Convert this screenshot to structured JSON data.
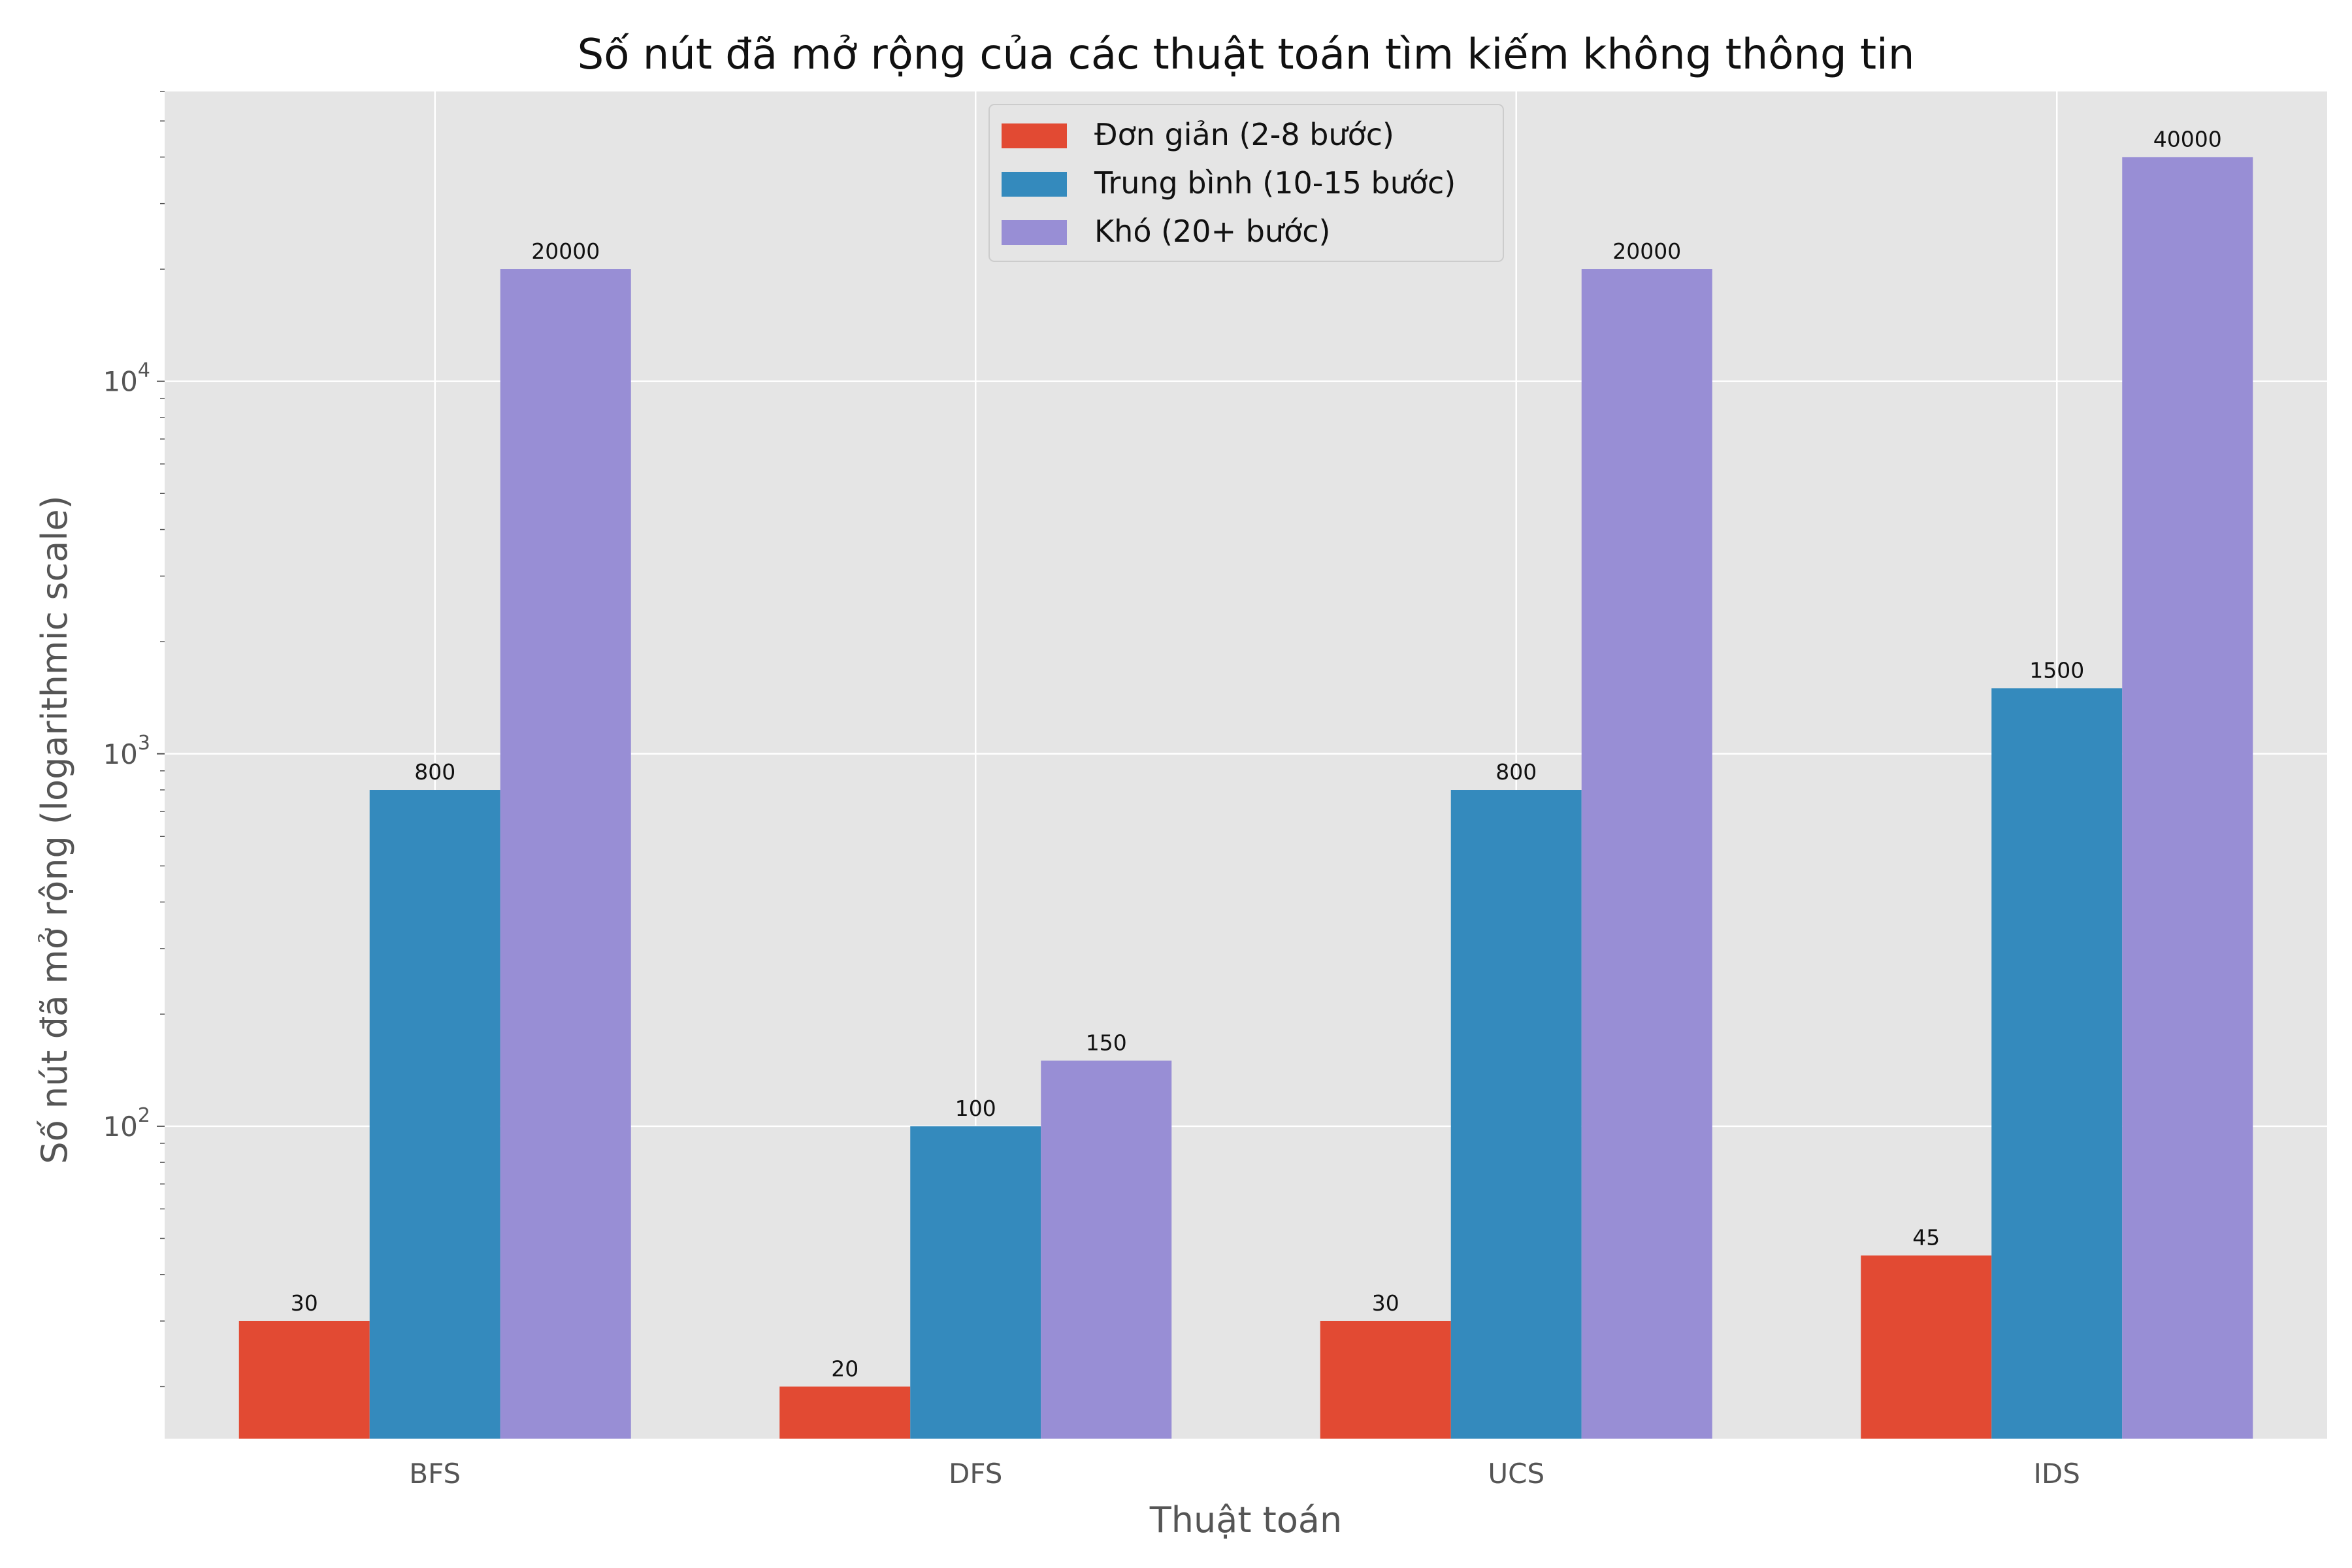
{
  "chart_data": {
    "type": "bar",
    "title": "Số nút đã mở rộng của các thuật toán tìm kiếm không thông tin",
    "xlabel": "Thuật toán",
    "ylabel": "Số nút đã mở rộng (logarithmic scale)",
    "yscale": "log",
    "ylim": [
      14.5,
      60000
    ],
    "categories": [
      "BFS",
      "DFS",
      "UCS",
      "IDS"
    ],
    "y_ticks": [
      {
        "base": "10",
        "exp": "2",
        "value": 100
      },
      {
        "base": "10",
        "exp": "3",
        "value": 1000
      },
      {
        "base": "10",
        "exp": "4",
        "value": 10000
      }
    ],
    "series": [
      {
        "name": "Đơn giản (2-8 bước)",
        "color": "#E24A33",
        "values": [
          30,
          20,
          30,
          45
        ]
      },
      {
        "name": "Trung bình (10-15 bước)",
        "color": "#348ABD",
        "values": [
          800,
          100,
          800,
          1500
        ]
      },
      {
        "name": "Khó (20+ bước)",
        "color": "#988ED5",
        "values": [
          20000,
          150,
          20000,
          40000
        ]
      }
    ],
    "grid": true,
    "legend_position": "top-center",
    "background_color": "#E5E5E5"
  }
}
